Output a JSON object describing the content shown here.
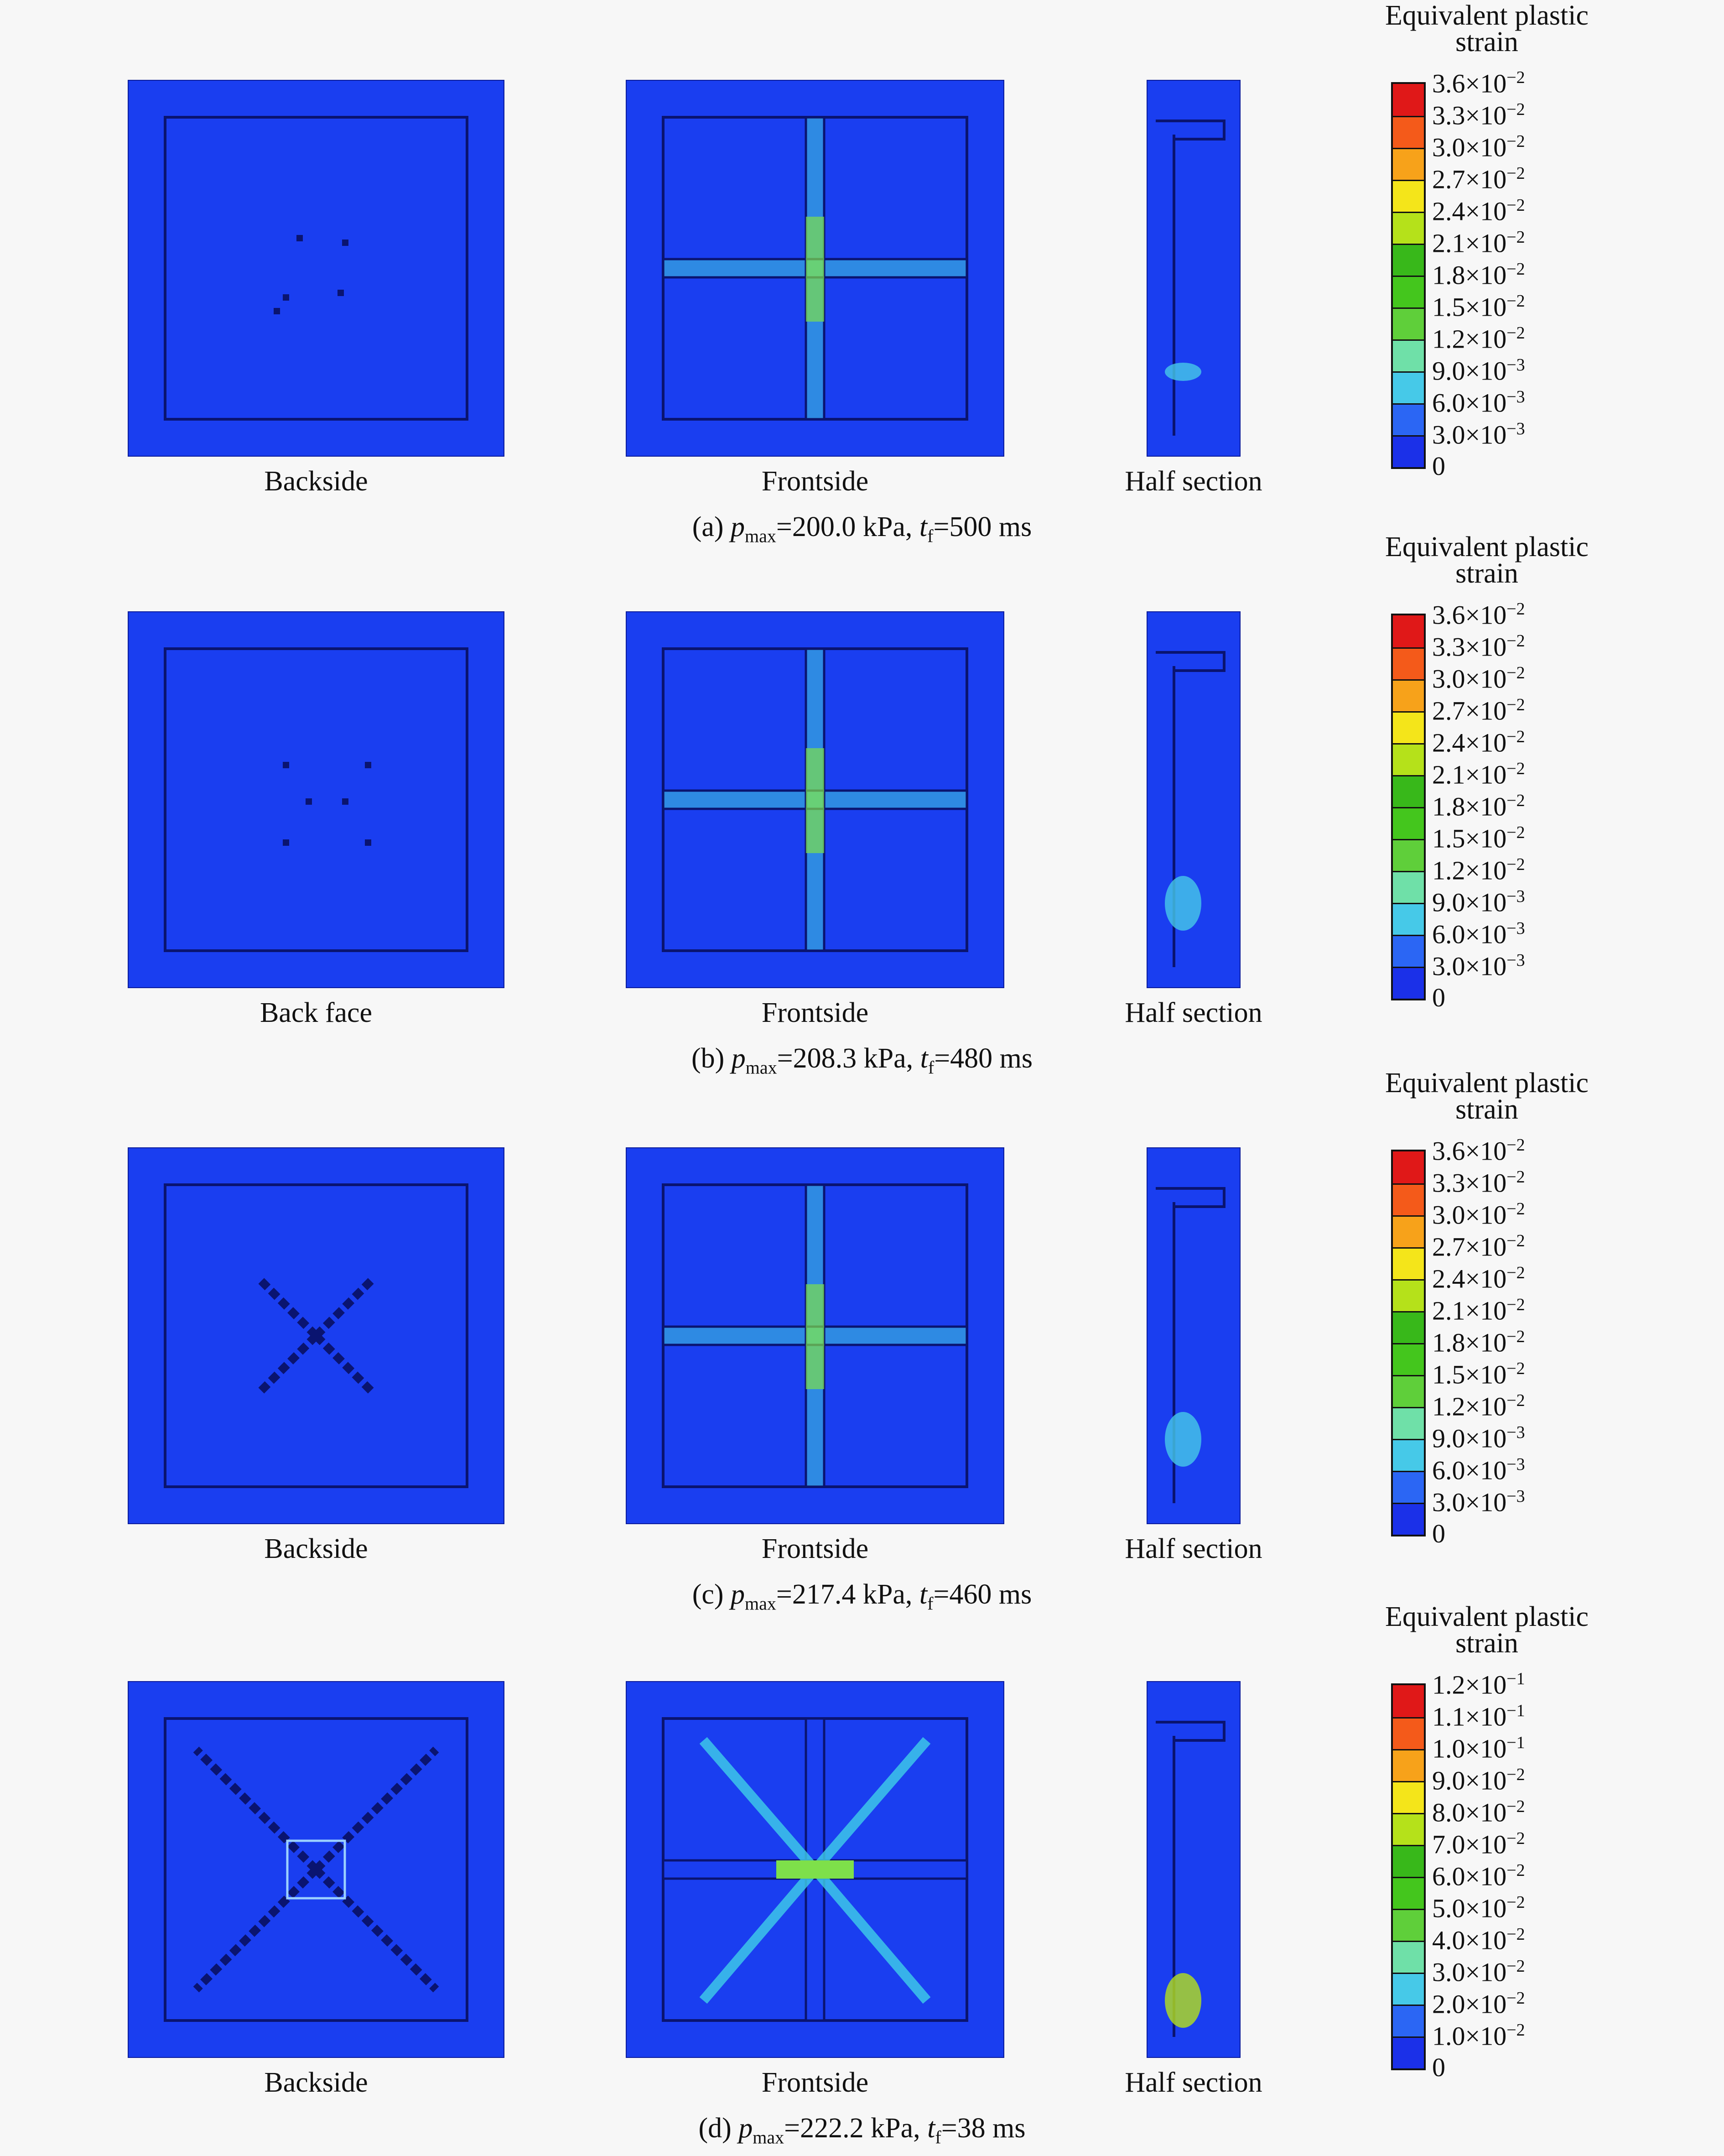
{
  "legend_title_line1": "Equivalent plastic",
  "legend_title_line2": "strain",
  "colors": [
    "#1b30e8",
    "#2b66f4",
    "#46c9e8",
    "#6fe0a8",
    "#5fcf3a",
    "#44c61d",
    "#38b81a",
    "#b5e11a",
    "#f4e51a",
    "#f7a21a",
    "#f45a1a",
    "#e01818"
  ],
  "rows": [
    {
      "caption": {
        "prefix": "(a) ",
        "p": "p",
        "sub": "max",
        "mid": "=200.0 kPa, ",
        "t": "t",
        "tsub": "f",
        "rest": "=500 ms"
      },
      "labels": {
        "back": "Backside",
        "front": "Frontside",
        "half": "Half section"
      },
      "legend": [
        "3.6×10",
        "3.3×10",
        "3.0×10",
        "2.7×10",
        "2.4×10",
        "2.1×10",
        "1.8×10",
        "1.5×10",
        "1.2×10",
        "9.0×10",
        "6.0×10",
        "3.0×10",
        "0"
      ],
      "legend_exp": [
        "−2",
        "−2",
        "−2",
        "−2",
        "−2",
        "−2",
        "−2",
        "−2",
        "−2",
        "−3",
        "−3",
        "−3",
        ""
      ]
    },
    {
      "caption": {
        "prefix": "(b) ",
        "p": "p",
        "sub": "max",
        "mid": "=208.3 kPa, ",
        "t": "t",
        "tsub": "f",
        "rest": "=480 ms"
      },
      "labels": {
        "back": "Back face",
        "front": "Frontside",
        "half": "Half section"
      },
      "legend": [
        "3.6×10",
        "3.3×10",
        "3.0×10",
        "2.7×10",
        "2.4×10",
        "2.1×10",
        "1.8×10",
        "1.5×10",
        "1.2×10",
        "9.0×10",
        "6.0×10",
        "3.0×10",
        "0"
      ],
      "legend_exp": [
        "−2",
        "−2",
        "−2",
        "−2",
        "−2",
        "−2",
        "−2",
        "−2",
        "−2",
        "−3",
        "−3",
        "−3",
        ""
      ]
    },
    {
      "caption": {
        "prefix": "(c) ",
        "p": "p",
        "sub": "max",
        "mid": "=217.4 kPa, ",
        "t": "t",
        "tsub": "f",
        "rest": "=460 ms"
      },
      "labels": {
        "back": "Backside",
        "front": "Frontside",
        "half": "Half section"
      },
      "legend": [
        "3.6×10",
        "3.3×10",
        "3.0×10",
        "2.7×10",
        "2.4×10",
        "2.1×10",
        "1.8×10",
        "1.5×10",
        "1.2×10",
        "9.0×10",
        "6.0×10",
        "3.0×10",
        "0"
      ],
      "legend_exp": [
        "−2",
        "−2",
        "−2",
        "−2",
        "−2",
        "−2",
        "−2",
        "−2",
        "−2",
        "−3",
        "−3",
        "−3",
        ""
      ]
    },
    {
      "caption": {
        "prefix": "(d) ",
        "p": "p",
        "sub": "max",
        "mid": "=222.2 kPa, ",
        "t": "t",
        "tsub": "f",
        "rest": "=38 ms"
      },
      "labels": {
        "back": "Backside",
        "front": "Frontside",
        "half": "Half section"
      },
      "legend": [
        "1.2×10",
        "1.1×10",
        "1.0×10",
        "9.0×10",
        "8.0×10",
        "7.0×10",
        "6.0×10",
        "5.0×10",
        "4.0×10",
        "3.0×10",
        "2.0×10",
        "1.0×10",
        "0"
      ],
      "legend_exp": [
        "−1",
        "−1",
        "−1",
        "−2",
        "−2",
        "−2",
        "−2",
        "−2",
        "−2",
        "−2",
        "−2",
        "−2",
        ""
      ]
    }
  ]
}
